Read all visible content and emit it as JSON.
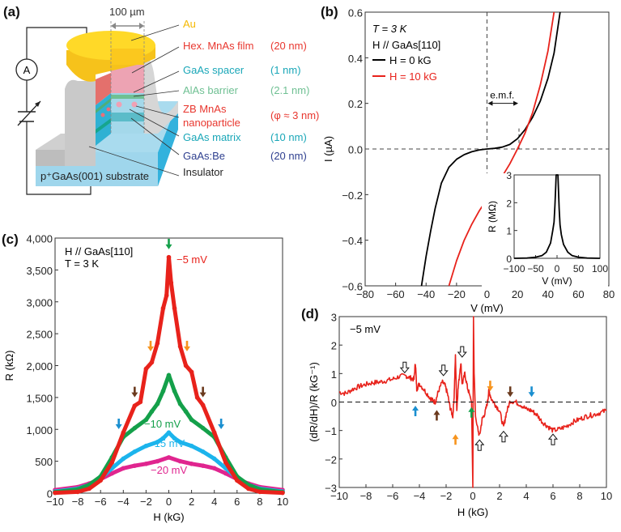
{
  "panel_labels": [
    "(a)",
    "(b)",
    "(c)",
    "(d)"
  ],
  "schematic": {
    "scale_label": "100 µm",
    "ammeter_label": "A",
    "layers": [
      {
        "name": "Au",
        "thickness": "",
        "color": "#f5b800"
      },
      {
        "name": "Hex. MnAs film",
        "thickness": "(20 nm)",
        "color": "#e8372f"
      },
      {
        "name": "GaAs spacer",
        "thickness": "(1 nm)",
        "color": "#1aa7b8"
      },
      {
        "name": "AlAs barrier",
        "thickness": "(2.1 nm)",
        "color": "#6fc093"
      },
      {
        "name": "ZB MnAs",
        "name2": "nanoparticle",
        "thickness": "(φ ≈ 3 nm)",
        "color": "#e8372f"
      },
      {
        "name": "GaAs matrix",
        "thickness": "(10 nm)",
        "color": "#1aa7b8"
      },
      {
        "name": "GaAs:Be",
        "thickness": "(20 nm)",
        "color": "#2e3f8f"
      }
    ],
    "insulator_label": "Insulator",
    "substrate_label": "p⁺GaAs(001) substrate"
  },
  "chart_data": [
    {
      "panel": "(b)",
      "type": "line",
      "xlabel": "V (mV)",
      "ylabel": "I (µA)",
      "xlim": [
        -80,
        80
      ],
      "ylim": [
        -0.6,
        0.6
      ],
      "xticks": [
        "−80",
        "−60",
        "−40",
        "−20",
        "0",
        "20",
        "40",
        "60",
        "80"
      ],
      "xtick_values": [
        -80,
        -60,
        -40,
        -20,
        0,
        20,
        40,
        60,
        80
      ],
      "yticks": [
        "−0.6",
        "−0.4",
        "−0.2",
        "0.0",
        "0.2",
        "0.4",
        "0.6"
      ],
      "ytick_values": [
        -0.6,
        -0.4,
        -0.2,
        0,
        0.2,
        0.4,
        0.6
      ],
      "annotations": [
        "T = 3 K",
        "H // GaAs[110]"
      ],
      "emf_label": "e.m.f.",
      "emf_range": [
        0,
        21
      ],
      "series": [
        {
          "name": "H = 0 kG",
          "color": "#000000",
          "x": [
            -43,
            -40,
            -37,
            -34,
            -30,
            -25,
            -20,
            -15,
            -10,
            -5,
            0,
            5,
            10,
            15,
            20,
            25,
            30,
            35,
            40,
            44,
            48
          ],
          "y": [
            -0.6,
            -0.47,
            -0.36,
            -0.26,
            -0.15,
            -0.08,
            -0.045,
            -0.025,
            -0.012,
            -0.004,
            0,
            0.003,
            0.008,
            0.02,
            0.045,
            0.085,
            0.14,
            0.21,
            0.31,
            0.42,
            0.6
          ]
        },
        {
          "name": "H = 10 kG",
          "color": "#e8221b",
          "x": [
            -25,
            -20,
            -15,
            -10,
            -5,
            0,
            5,
            10,
            15,
            20,
            25,
            30,
            35,
            40,
            44
          ],
          "y": [
            -0.6,
            -0.49,
            -0.4,
            -0.33,
            -0.27,
            -0.22,
            -0.17,
            -0.12,
            -0.065,
            0,
            0.07,
            0.16,
            0.28,
            0.43,
            0.6
          ]
        }
      ],
      "inset": {
        "type": "line",
        "xlabel": "V (mV)",
        "ylabel": "R (MΩ)",
        "xlim": [
          -100,
          100
        ],
        "ylim": [
          0,
          3
        ],
        "xticks": [
          "−100",
          "−50",
          "0",
          "50",
          "100"
        ],
        "xtick_values": [
          -100,
          -50,
          0,
          50,
          100
        ],
        "yticks": [
          "0",
          "1",
          "2",
          "3"
        ],
        "ytick_values": [
          0,
          1,
          2,
          3
        ],
        "series": [
          {
            "color": "#000000",
            "x": [
              -100,
              -70,
              -50,
              -35,
              -25,
              -15,
              -10,
              -7,
              -5,
              -3,
              -2,
              2,
              3,
              5,
              7,
              10,
              15,
              25,
              35,
              50,
              70,
              100
            ],
            "y": [
              0,
              0.01,
              0.04,
              0.1,
              0.22,
              0.55,
              1.0,
              1.3,
              1.9,
              2.6,
              3,
              3,
              2.6,
              1.8,
              1.2,
              0.85,
              0.5,
              0.22,
              0.1,
              0.04,
              0.01,
              0
            ]
          }
        ]
      }
    },
    {
      "panel": "(c)",
      "type": "scatter",
      "xlabel": "H (kG)",
      "ylabel": "R (kΩ)",
      "xlim": [
        -10,
        10
      ],
      "ylim": [
        0,
        4000
      ],
      "xticks": [
        "−10",
        "−8",
        "−6",
        "−4",
        "−2",
        "0",
        "2",
        "4",
        "6",
        "8",
        "10"
      ],
      "xtick_values": [
        -10,
        -8,
        -6,
        -4,
        -2,
        0,
        2,
        4,
        6,
        8,
        10
      ],
      "yticks": [
        "0",
        "500",
        "1,000",
        "1,500",
        "2,000",
        "2,500",
        "3,000",
        "3,500",
        "4,000"
      ],
      "ytick_values": [
        0,
        500,
        1000,
        1500,
        2000,
        2500,
        3000,
        3500,
        4000
      ],
      "annotations": [
        "H // GaAs[110]",
        "T = 3 K"
      ],
      "series": [
        {
          "name": "−5 mV",
          "color": "#e8221b",
          "x": [
            -10,
            -8,
            -7,
            -6,
            -5,
            -4,
            -3,
            -2.5,
            -2,
            -1.5,
            -1,
            -0.5,
            -0.2,
            0,
            0.2,
            0.5,
            1,
            1.5,
            2,
            2.5,
            3,
            4,
            5,
            6,
            7,
            8,
            10
          ],
          "y": [
            5,
            20,
            70,
            200,
            480,
            950,
            1370,
            1430,
            1950,
            2050,
            2350,
            2900,
            3100,
            3700,
            3300,
            2900,
            2300,
            2000,
            1900,
            1500,
            1380,
            950,
            480,
            200,
            70,
            20,
            5
          ]
        },
        {
          "name": "−10 mV",
          "color": "#14a04a",
          "x": [
            -10,
            -8,
            -7,
            -6,
            -5,
            -4,
            -3,
            -2,
            -1.5,
            -1,
            -0.5,
            0,
            0.5,
            1,
            1.5,
            2,
            3,
            4,
            5,
            6,
            7,
            8,
            10
          ],
          "y": [
            15,
            60,
            130,
            260,
            560,
            880,
            1020,
            1150,
            1280,
            1400,
            1600,
            1850,
            1600,
            1400,
            1280,
            1150,
            1020,
            880,
            560,
            260,
            130,
            60,
            15
          ]
        },
        {
          "name": "−15 mV",
          "color": "#1cb4ec",
          "x": [
            -10,
            -8,
            -7,
            -6,
            -5,
            -4,
            -3,
            -2,
            -1,
            -0.5,
            0,
            0.5,
            1,
            2,
            3,
            4,
            5,
            6,
            7,
            8,
            10
          ],
          "y": [
            25,
            70,
            130,
            230,
            390,
            540,
            650,
            740,
            800,
            860,
            950,
            860,
            800,
            740,
            650,
            540,
            390,
            230,
            130,
            70,
            25
          ]
        },
        {
          "name": "−20 mV",
          "color": "#e0258f",
          "x": [
            -10,
            -8,
            -7,
            -6,
            -5,
            -4,
            -3,
            -2,
            -1,
            0,
            1,
            2,
            3,
            4,
            5,
            6,
            7,
            8,
            10
          ],
          "y": [
            50,
            95,
            150,
            220,
            310,
            390,
            430,
            460,
            500,
            560,
            500,
            460,
            430,
            390,
            310,
            220,
            150,
            95,
            50
          ]
        }
      ],
      "arrows": [
        {
          "x": 0,
          "y": 3900,
          "color": "#14a04a"
        },
        {
          "x": -1.6,
          "y": 2300,
          "color": "#f7941d"
        },
        {
          "x": 1.6,
          "y": 2300,
          "color": "#f7941d"
        },
        {
          "x": -3,
          "y": 1580,
          "color": "#6b3a1e"
        },
        {
          "x": 3,
          "y": 1580,
          "color": "#6b3a1e"
        },
        {
          "x": -4.4,
          "y": 1080,
          "color": "#1a8fd0"
        },
        {
          "x": 4.6,
          "y": 1080,
          "color": "#1a8fd0"
        }
      ]
    },
    {
      "panel": "(d)",
      "type": "line",
      "xlabel": "H (kG)",
      "ylabel": "(dR/dH)/R (kG⁻¹)",
      "xlim": [
        -10,
        10
      ],
      "ylim": [
        -3,
        3
      ],
      "xticks": [
        "−10",
        "−8",
        "−6",
        "−4",
        "−2",
        "0",
        "2",
        "4",
        "6",
        "8",
        "10"
      ],
      "xtick_values": [
        -10,
        -8,
        -6,
        -4,
        -2,
        0,
        2,
        4,
        6,
        8,
        10
      ],
      "yticks": [
        "−3",
        "−2",
        "−1",
        "0",
        "1",
        "2",
        "3"
      ],
      "ytick_values": [
        -3,
        -2,
        -1,
        0,
        1,
        2,
        3
      ],
      "annotations": [
        "−5 mV"
      ],
      "series": [
        {
          "color": "#e8221b",
          "x": [
            -10,
            -9.5,
            -9,
            -8.5,
            -8,
            -7.5,
            -7,
            -6.5,
            -6,
            -5.5,
            -5,
            -4.7,
            -4.4,
            -4.3,
            -4.2,
            -4,
            -3.6,
            -3.2,
            -3,
            -2.8,
            -2.6,
            -2.3,
            -2.1,
            -1.9,
            -1.7,
            -1.5,
            -1.4,
            -1.3,
            -1.2,
            -1.1,
            -0.9,
            -0.8,
            -0.6,
            -0.4,
            -0.2,
            -0.1,
            0,
            0.05,
            0.1,
            0.2,
            0.3,
            0.5,
            0.7,
            0.9,
            1.1,
            1.2,
            1.4,
            1.7,
            2,
            2.3,
            2.5,
            2.8,
            3.2,
            3.6,
            4,
            4.4,
            4.8,
            5.2,
            5.6,
            6,
            6.5,
            7,
            7.5,
            8,
            8.5,
            9,
            9.5,
            10
          ],
          "y": [
            0.35,
            0.3,
            0.45,
            0.55,
            0.62,
            0.68,
            0.7,
            0.75,
            0.8,
            0.9,
            0.92,
            0.85,
            0.8,
            1.4,
            0.45,
            0.65,
            0.4,
            0.15,
            0.05,
            0.0,
            0.35,
            0.7,
            0.6,
            0.3,
            -0.2,
            -0.5,
            0.2,
            1.6,
            -0.3,
            0.5,
            1.4,
            0.6,
            1.0,
            0.5,
            0.2,
            0.0,
            -3.0,
            3.0,
            1.0,
            -0.5,
            -0.8,
            -1.2,
            -0.6,
            -0.4,
            0.0,
            0.4,
            0.1,
            -0.1,
            -0.3,
            -0.9,
            -0.4,
            0.05,
            0.0,
            -0.1,
            -0.25,
            -0.3,
            -0.45,
            -0.7,
            -0.85,
            -1.0,
            -0.95,
            -0.85,
            -0.7,
            -0.6,
            -0.5,
            -0.45,
            -0.38,
            -0.3
          ]
        }
      ],
      "open_arrows": [
        {
          "x": -5.1,
          "y": 1.2,
          "dir": "down"
        },
        {
          "x": -2.2,
          "y": 1.1,
          "dir": "down"
        },
        {
          "x": -0.8,
          "y": 1.75,
          "dir": "down"
        },
        {
          "x": 0.5,
          "y": -1.5,
          "dir": "up"
        },
        {
          "x": 2.3,
          "y": -1.2,
          "dir": "up"
        },
        {
          "x": 6,
          "y": -1.3,
          "dir": "up"
        }
      ],
      "arrows": [
        {
          "x": -4.3,
          "y": -0.3,
          "dir": "up",
          "color": "#1a8fd0"
        },
        {
          "x": -2.7,
          "y": -0.45,
          "dir": "up",
          "color": "#6b3a1e"
        },
        {
          "x": -1.3,
          "y": -1.3,
          "dir": "up",
          "color": "#f7941d"
        },
        {
          "x": -0.1,
          "y": -0.35,
          "dir": "up",
          "color": "#14a04a"
        },
        {
          "x": 1.3,
          "y": 0.55,
          "dir": "down",
          "color": "#f7941d"
        },
        {
          "x": 2.8,
          "y": 0.35,
          "dir": "down",
          "color": "#6b3a1e"
        },
        {
          "x": 4.4,
          "y": 0.35,
          "dir": "down",
          "color": "#1a8fd0"
        }
      ]
    }
  ]
}
